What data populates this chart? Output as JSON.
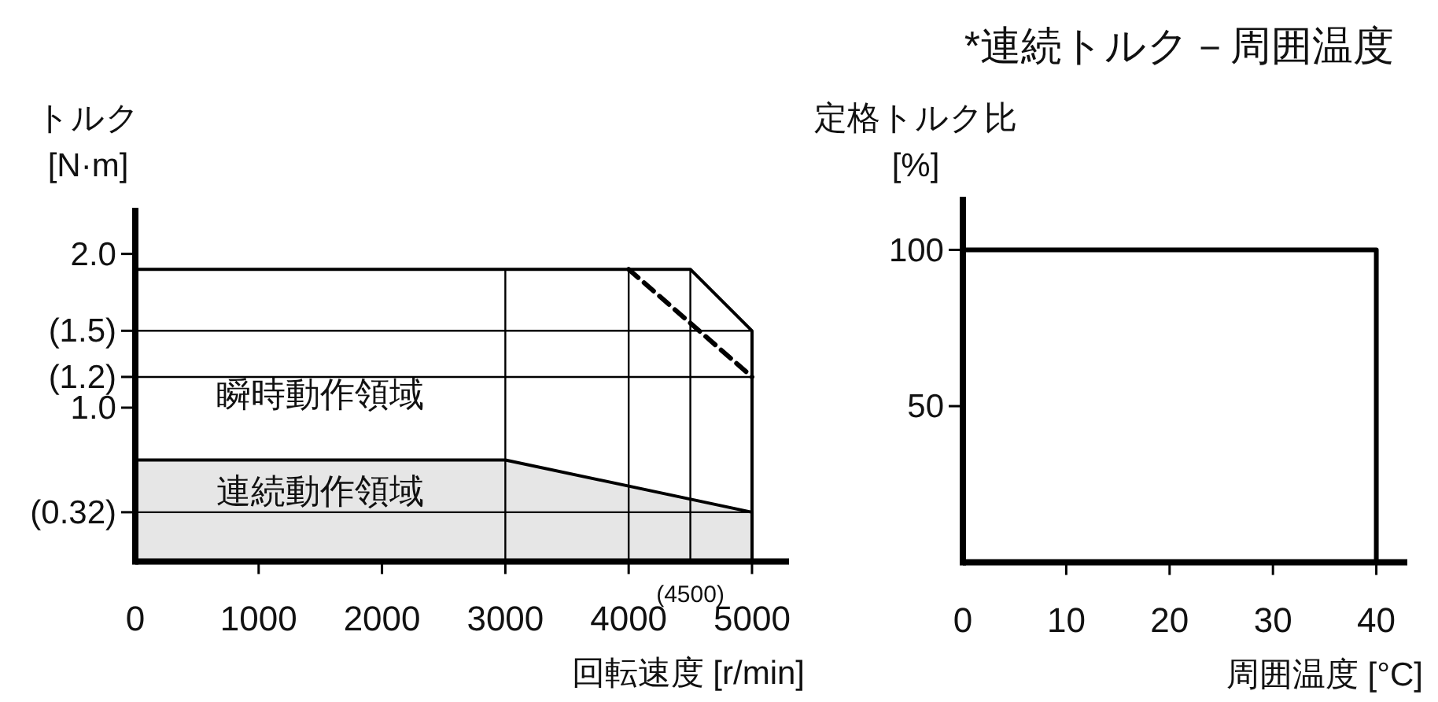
{
  "chart_data": [
    {
      "type": "area",
      "xlabel": "回転速度 [r/min]",
      "ylabel": "トルク\n[N·m]",
      "xlim": [
        0,
        5300
      ],
      "ylim": [
        0,
        2.3
      ],
      "xticks": [
        0,
        1000,
        2000,
        3000,
        4000,
        5000
      ],
      "yticks": [
        {
          "value": 0.32,
          "label": "(0.32)"
        },
        {
          "value": 1.0,
          "label": "1.0"
        },
        {
          "value": 1.2,
          "label": "(1.2)"
        },
        {
          "value": 1.5,
          "label": "(1.5)"
        },
        {
          "value": 2.0,
          "label": "2.0"
        }
      ],
      "series": [
        {
          "name": "瞬時動作領域",
          "type": "area",
          "color": "#ffffff",
          "x": [
            0,
            4500,
            5000
          ],
          "values": [
            1.9,
            1.9,
            1.5
          ]
        },
        {
          "name": "連続動作領域",
          "type": "area",
          "color": "#e6e6e6",
          "x": [
            0,
            3000,
            5000
          ],
          "values": [
            0.66,
            0.66,
            0.32
          ]
        },
        {
          "type": "line",
          "line_style": "dashed",
          "color": "#000000",
          "x": [
            4000,
            5000
          ],
          "values": [
            1.9,
            1.2
          ]
        }
      ],
      "ref_lines": [
        {
          "axis": "x",
          "value": 3000
        },
        {
          "axis": "x",
          "value": 4000
        },
        {
          "axis": "x",
          "value": 4500,
          "label": "(4500)"
        },
        {
          "axis": "y",
          "value": 0.32
        },
        {
          "axis": "y",
          "value": 1.2
        },
        {
          "axis": "y",
          "value": 1.5
        }
      ]
    },
    {
      "type": "line",
      "title": "*連続トルク－周囲温度",
      "xlabel": "周囲温度 [°C]",
      "ylabel": "定格トルク比\n[%]",
      "xlim": [
        0,
        43
      ],
      "ylim": [
        0,
        117
      ],
      "xticks": [
        0,
        10,
        20,
        30,
        40
      ],
      "yticks": [
        50,
        100
      ],
      "series": [
        {
          "color": "#000000",
          "x": [
            0,
            40,
            40
          ],
          "values": [
            100,
            100,
            0
          ]
        }
      ]
    }
  ]
}
